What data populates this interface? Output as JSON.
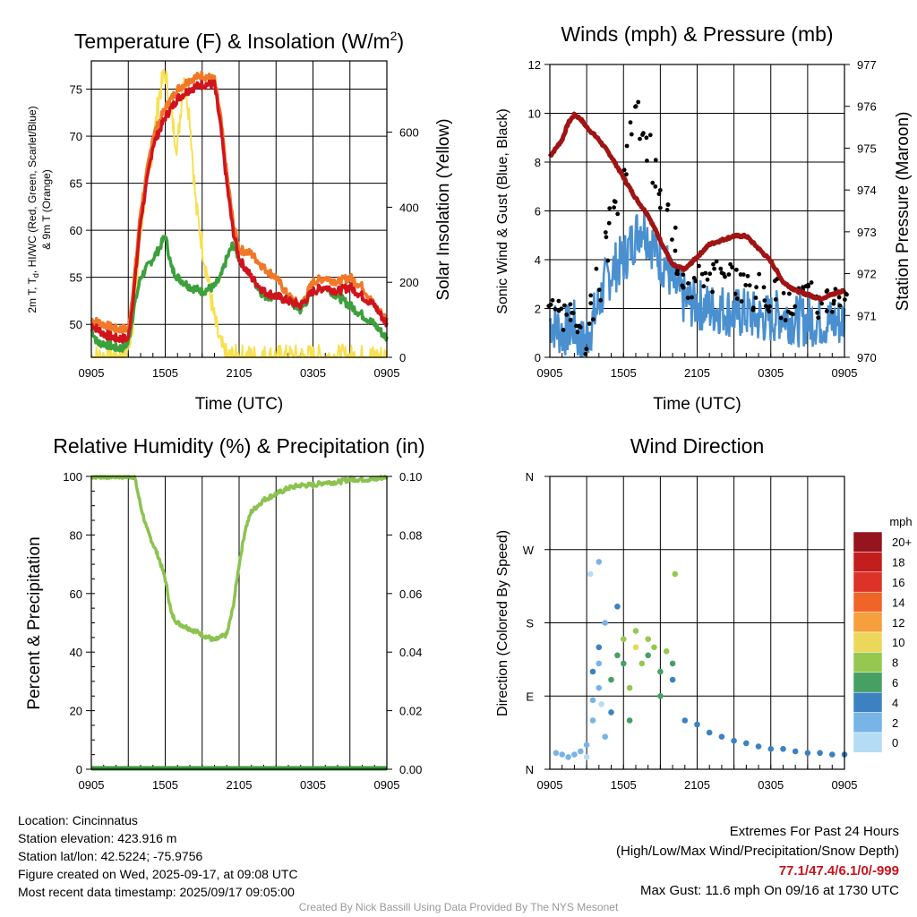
{
  "colors": {
    "temp2m": "#d0141e",
    "temp9m": "#f07828",
    "dewpoint": "#3ca03c",
    "insolation": "#f8e050",
    "wind": "#4a90d0",
    "gust": "#000000",
    "pressure": "#a01414",
    "rh": "#8cc350",
    "precip": "#3c963c"
  },
  "x_ticks": [
    "0905",
    "1505",
    "2105",
    "0305",
    "0905"
  ],
  "chart_data": [
    {
      "type": "line",
      "title": "Temperature (F) & Insolation (W/m²)",
      "xlabel": "Time (UTC)",
      "ylabel": "2m T, T_d, HI/WC (Red, Green, Scarlet/Blue) & 9m T (Orange)",
      "ylabel_lines": [
        "2m T, T",
        "d",
        ", HI/WC (Red, Green, Scarlet/Blue)",
        "& 9m T (Orange)"
      ],
      "y2label": "Solar Insolation (Yellow)",
      "title_parts": [
        "Temperature (F) & Insolation (W/m",
        "2",
        ")"
      ],
      "x_range_hours": [
        0,
        24
      ],
      "ylim": [
        46.5,
        78
      ],
      "y_ticks": [
        50,
        55,
        60,
        65,
        70,
        75
      ],
      "y2lim": [
        0,
        790
      ],
      "y2_ticks": [
        0,
        200,
        400,
        600
      ],
      "series": [
        {
          "key": "temp9m",
          "x": [
            0,
            1,
            2,
            2.5,
            3,
            3.5,
            4,
            4.5,
            5,
            6,
            7,
            8,
            9,
            10,
            10.5,
            11,
            11.5,
            12,
            13,
            14,
            15,
            16,
            17,
            18,
            19,
            20,
            21,
            22,
            23,
            24
          ],
          "y": [
            50.5,
            50,
            49.5,
            49.5,
            49.5,
            55,
            62,
            66,
            70,
            73,
            75,
            76,
            76.5,
            76,
            72,
            66,
            61,
            58,
            57.5,
            56,
            55,
            53,
            52,
            54.5,
            55,
            54.5,
            55,
            54,
            52,
            50.5
          ]
        },
        {
          "key": "temp2m",
          "x": [
            0,
            1,
            2,
            2.5,
            3,
            3.5,
            4,
            4.5,
            5,
            6,
            7,
            8,
            9,
            10,
            10.5,
            11,
            11.5,
            12,
            13,
            14,
            15,
            16,
            17,
            18,
            19,
            20,
            21,
            22,
            23,
            24
          ],
          "y": [
            50,
            49,
            48.5,
            48.5,
            48.5,
            54,
            61,
            65,
            69,
            72,
            74,
            75,
            75.5,
            75.5,
            71,
            65,
            60,
            57,
            55,
            53.5,
            53,
            52.5,
            52,
            53.5,
            54,
            53.5,
            54,
            53,
            52,
            50
          ]
        },
        {
          "key": "dewpoint",
          "x": [
            0,
            0.5,
            1,
            2,
            2.5,
            3,
            3.5,
            4,
            4.5,
            5,
            5.5,
            6,
            6.5,
            7,
            8,
            9,
            10,
            10.5,
            11,
            11.5,
            12,
            13,
            14,
            15,
            16,
            17,
            18,
            19,
            20,
            21,
            22,
            23,
            24
          ],
          "y": [
            49.5,
            48,
            48,
            47.5,
            47.5,
            48,
            52,
            55,
            56,
            57,
            58,
            59.5,
            56,
            55,
            54,
            53.5,
            54,
            55,
            57,
            58.5,
            57,
            55,
            53,
            53,
            52.5,
            51.5,
            53.5,
            54,
            53,
            52,
            51,
            50,
            48.5
          ]
        },
        {
          "key": "insolation",
          "x": [
            0,
            2,
            2.5,
            3,
            3.5,
            4,
            4.5,
            5,
            5.5,
            6,
            6.5,
            7,
            7.5,
            8,
            8.5,
            9,
            9.5,
            10,
            10.5,
            11,
            12,
            14,
            16,
            18,
            20,
            22,
            24
          ],
          "y": [
            0,
            0,
            5,
            30,
            120,
            330,
            480,
            560,
            700,
            760,
            640,
            560,
            760,
            640,
            400,
            300,
            200,
            100,
            30,
            0,
            0,
            0,
            0,
            0,
            0,
            0,
            0
          ]
        }
      ]
    },
    {
      "type": "scatter",
      "title": "Winds (mph) & Pressure (mb)",
      "xlabel": "Time (UTC)",
      "ylabel": "Sonic Wind & Gust (Blue, Black)",
      "y2label": "Station Pressure (Maroon)",
      "x_range_hours": [
        0,
        24
      ],
      "ylim": [
        0,
        12
      ],
      "y_ticks": [
        0,
        2,
        4,
        6,
        8,
        10,
        12
      ],
      "y2lim": [
        970,
        977
      ],
      "y2_ticks": [
        970,
        971,
        972,
        973,
        974,
        975,
        976,
        977
      ],
      "series": [
        {
          "key": "wind",
          "x": [
            0,
            1,
            2,
            2.5,
            3,
            3.5,
            4,
            4.5,
            5,
            5.5,
            6,
            6.5,
            7,
            7.5,
            8,
            8.5,
            9,
            9.5,
            10,
            11,
            12,
            13,
            14,
            15,
            16,
            17,
            18,
            19,
            20,
            21,
            22,
            23,
            24
          ],
          "y": [
            1.5,
            1,
            1.3,
            0.5,
            0.8,
            1.5,
            2.2,
            3,
            3.5,
            3.8,
            4,
            4.5,
            5,
            5.5,
            5,
            4.5,
            4,
            3.8,
            3,
            2.3,
            2.2,
            2,
            2,
            1.8,
            1.8,
            1.6,
            1.6,
            1.8,
            1.5,
            1.5,
            1.5,
            1.4,
            1.5
          ]
        },
        {
          "key": "gust",
          "x": [
            0,
            0.5,
            1,
            1.5,
            2,
            2.5,
            3,
            3.5,
            4,
            4.5,
            5,
            5.5,
            6,
            6.5,
            7,
            7.5,
            8,
            8.5,
            9,
            9.5,
            10,
            10.5,
            11,
            11.5,
            12,
            12.5,
            13,
            13.5,
            14,
            14.5,
            15,
            15.5,
            16,
            16.5,
            17,
            17.5,
            18,
            18.5,
            19,
            19.5,
            20,
            20.5,
            21,
            21.5,
            22,
            22.5,
            23,
            23.5,
            24
          ],
          "y": [
            2.5,
            2,
            1.8,
            2,
            1.5,
            1.2,
            0.8,
            2,
            3,
            4.5,
            5.5,
            6.5,
            7.5,
            9,
            10,
            9.5,
            8.5,
            7.5,
            6.5,
            6,
            5,
            4,
            3.5,
            3,
            3.2,
            3.5,
            3.3,
            3.5,
            3.2,
            3.2,
            3,
            2.9,
            3,
            2.6,
            2.8,
            2.4,
            2.5,
            2.6,
            2.2,
            2.5,
            2.3,
            2.6,
            2.4,
            2.8,
            2.2,
            2.5,
            2.4,
            2.5,
            2.8
          ]
        },
        {
          "key": "pressure",
          "x": [
            0,
            0.5,
            1,
            1.5,
            2,
            2.5,
            3,
            4,
            5,
            6,
            7,
            8,
            9,
            10,
            11,
            12,
            13,
            14,
            15,
            16,
            17,
            18,
            19,
            20,
            21,
            22,
            23,
            24
          ],
          "y": [
            974.8,
            975,
            975.2,
            975.6,
            975.8,
            975.7,
            975.5,
            975.2,
            974.8,
            974.3,
            973.8,
            973.4,
            972.8,
            972.2,
            972.1,
            972.4,
            972.7,
            972.8,
            972.9,
            972.9,
            972.6,
            972.3,
            971.8,
            971.6,
            971.5,
            971.4,
            971.5,
            971.6
          ]
        }
      ]
    },
    {
      "type": "line",
      "title": "Relative Humidity (%) & Precipitation (in)",
      "xlabel": "",
      "ylabel": "Percent & Precipitation",
      "x_range_hours": [
        0,
        24
      ],
      "ylim": [
        0,
        100
      ],
      "y_ticks": [
        0,
        20,
        40,
        60,
        80,
        100
      ],
      "y2lim": [
        0,
        0.1
      ],
      "y2_ticks": [
        "0.00",
        "0.02",
        "0.04",
        "0.06",
        "0.08",
        "0.10"
      ],
      "series": [
        {
          "key": "rh",
          "x": [
            0,
            1,
            2,
            3,
            3.5,
            4,
            4.5,
            5,
            5.5,
            6,
            6.5,
            7,
            7.5,
            8,
            9,
            10,
            11,
            11.5,
            12,
            12.5,
            13,
            13.5,
            14,
            15,
            16,
            17,
            18,
            19,
            20,
            21,
            22,
            23,
            24
          ],
          "y": [
            100,
            100,
            100,
            100,
            100,
            90,
            82,
            77,
            72,
            65,
            53,
            50,
            49,
            48,
            46,
            44,
            46,
            55,
            70,
            82,
            88,
            90,
            92,
            94,
            96,
            97,
            97,
            98,
            98,
            99,
            99,
            99,
            100
          ]
        },
        {
          "key": "precip",
          "x": [
            0,
            24
          ],
          "y": [
            0,
            0
          ]
        }
      ]
    },
    {
      "type": "scatter",
      "title": "Wind Direction",
      "xlabel": "",
      "ylabel": "Direction (Colored By Speed)",
      "x_range_hours": [
        0,
        24
      ],
      "y_ticks": [
        "N",
        "E",
        "S",
        "W",
        "N"
      ],
      "legend": {
        "title": "mph",
        "labels": [
          "20+",
          "18",
          "16",
          "14",
          "12",
          "10",
          "8",
          "6",
          "4",
          "2",
          "0"
        ],
        "colors": [
          "#96141e",
          "#c31e1e",
          "#dc3228",
          "#f06428",
          "#f5a03c",
          "#ebd75a",
          "#96c850",
          "#46a064",
          "#3c82c3",
          "#78b4e6",
          "#b4dcf5"
        ]
      },
      "points": [
        [
          0.5,
          20,
          1
        ],
        [
          1,
          18,
          1
        ],
        [
          1.5,
          15,
          1
        ],
        [
          2,
          18,
          1
        ],
        [
          2.5,
          22,
          1
        ],
        [
          3,
          15,
          0
        ],
        [
          3,
          30,
          1
        ],
        [
          3.5,
          60,
          1
        ],
        [
          3.5,
          85,
          1
        ],
        [
          3.5,
          120,
          2
        ],
        [
          4,
          150,
          2
        ],
        [
          4,
          130,
          1
        ],
        [
          4,
          100,
          1
        ],
        [
          4.2,
          80,
          0
        ],
        [
          4.5,
          40,
          1
        ],
        [
          5,
          70,
          2
        ],
        [
          5,
          110,
          3
        ],
        [
          5.5,
          140,
          3
        ],
        [
          6,
          160,
          4
        ],
        [
          6,
          130,
          3
        ],
        [
          6.5,
          100,
          4
        ],
        [
          6.5,
          60,
          3
        ],
        [
          7,
          170,
          4
        ],
        [
          7,
          150,
          5
        ],
        [
          7.5,
          130,
          4
        ],
        [
          8,
          140,
          3
        ],
        [
          8,
          160,
          4
        ],
        [
          8.5,
          150,
          4
        ],
        [
          9,
          120,
          3
        ],
        [
          9,
          90,
          3
        ],
        [
          9.5,
          145,
          4
        ],
        [
          10,
          130,
          3
        ],
        [
          10,
          110,
          2
        ],
        [
          10.2,
          240,
          4
        ],
        [
          11,
          60,
          2
        ],
        [
          12,
          55,
          2
        ],
        [
          13,
          45,
          2
        ],
        [
          14,
          40,
          2
        ],
        [
          15,
          35,
          2
        ],
        [
          16,
          32,
          2
        ],
        [
          17,
          28,
          2
        ],
        [
          18,
          25,
          2
        ],
        [
          19,
          25,
          2
        ],
        [
          20,
          22,
          2
        ],
        [
          21,
          20,
          2
        ],
        [
          22,
          20,
          2
        ],
        [
          23,
          18,
          2
        ],
        [
          24,
          18,
          2
        ],
        [
          3.3,
          240,
          0
        ],
        [
          4,
          255,
          1
        ],
        [
          4.5,
          180,
          1
        ],
        [
          5.5,
          200,
          2
        ]
      ]
    }
  ],
  "footer_left": {
    "location": "Location: Cincinnatus",
    "elevation": "Station elevation: 423.916 m",
    "latlon": "Station lat/lon: 42.5224; -75.9756",
    "created": "Figure created on Wed, 2025-09-17, at 09:08 UTC",
    "recent": "Most recent data timestamp: 2025/09/17 09:05:00"
  },
  "footer_right": {
    "title": "Extremes For Past 24 Hours",
    "subtitle": "(High/Low/Max Wind/Precipitation/Snow Depth)",
    "values": "77.1/47.4/6.1/0/-999",
    "gust": "Max Gust: 11.6 mph On 09/16 at 1730 UTC"
  },
  "credit": "Created By Nick Bassill Using Data Provided By The NYS Mesonet"
}
